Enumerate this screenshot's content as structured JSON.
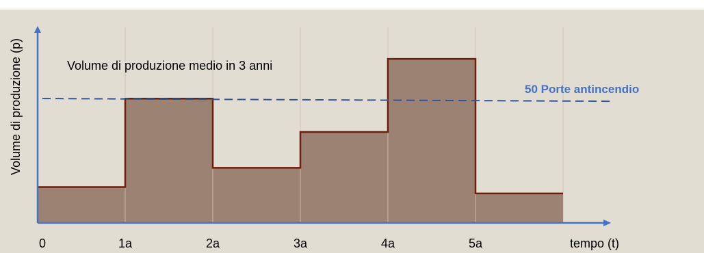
{
  "chart_data": {
    "type": "bar",
    "title": "Volume di produzione medio in 3 anni",
    "ylabel": "Volume di produzione (p)",
    "xlabel": "tempo (t)",
    "x_ticks": [
      "0",
      "1a",
      "2a",
      "3a",
      "4a",
      "5a"
    ],
    "categories": [
      "0-1a",
      "1a-2a",
      "2a-3a",
      "3a-4a",
      "4a-5a",
      "5a-6a"
    ],
    "values": [
      28,
      97,
      43,
      71,
      128,
      23
    ],
    "ylim": [
      0,
      135
    ],
    "reference_line": {
      "label": "50 Porte antincendio",
      "value": 96
    },
    "grid": "vertical",
    "colors": {
      "background": "#E2DDD3",
      "bar_fill": "#9C8272",
      "bar_outline": "#6E1E0E",
      "axis": "#4472C4",
      "reference": "#2F5597",
      "grid": "#C9C2B8",
      "text": "#000000"
    }
  }
}
